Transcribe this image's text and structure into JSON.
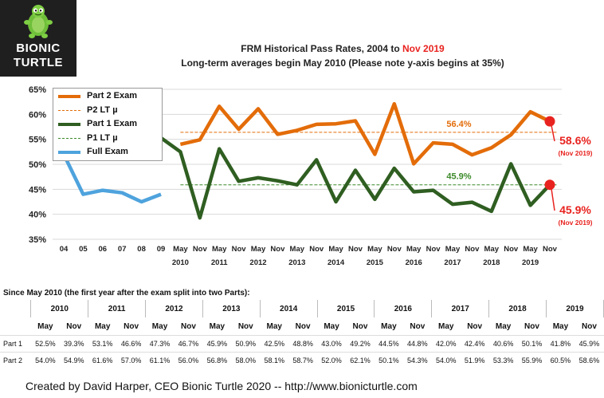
{
  "logo": {
    "line1": "BIONIC",
    "line2": "TURTLE",
    "icon": "turtle-icon"
  },
  "title": {
    "line1_prefix": "FRM Historical Pass Rates, 2004 to ",
    "line1_highlight": "Nov 2019",
    "line2": "Long-term averages begin May 2010 (Please note y-axis begins at 35%)"
  },
  "colors": {
    "part2": "#e36c09",
    "part1": "#2f5e21",
    "full": "#4ea3dd",
    "highlight": "#e8231f",
    "p2avg": "#e36c09",
    "p1avg": "#3d8a2a"
  },
  "chart_data": {
    "type": "line",
    "title": "FRM Historical Pass Rates, 2004 to Nov 2019",
    "subtitle": "Long-term averages begin May 2010 (Please note y-axis begins at 35%)",
    "y_ticks": [
      "35%",
      "40%",
      "45%",
      "50%",
      "55%",
      "60%",
      "65%"
    ],
    "ylim": [
      35,
      65
    ],
    "x_ticks": [
      {
        "label": "04",
        "year": ""
      },
      {
        "label": "05",
        "year": ""
      },
      {
        "label": "06",
        "year": ""
      },
      {
        "label": "07",
        "year": ""
      },
      {
        "label": "08",
        "year": ""
      },
      {
        "label": "09",
        "year": ""
      },
      {
        "label": "May",
        "year": "2010"
      },
      {
        "label": "Nov",
        "year": ""
      },
      {
        "label": "May",
        "year": "2011"
      },
      {
        "label": "Nov",
        "year": ""
      },
      {
        "label": "May",
        "year": "2012"
      },
      {
        "label": "Nov",
        "year": ""
      },
      {
        "label": "May",
        "year": "2013"
      },
      {
        "label": "Nov",
        "year": ""
      },
      {
        "label": "May",
        "year": "2014"
      },
      {
        "label": "Nov",
        "year": ""
      },
      {
        "label": "May",
        "year": "2015"
      },
      {
        "label": "Nov",
        "year": ""
      },
      {
        "label": "May",
        "year": "2016"
      },
      {
        "label": "Nov",
        "year": ""
      },
      {
        "label": "May",
        "year": "2017"
      },
      {
        "label": "Nov",
        "year": ""
      },
      {
        "label": "May",
        "year": "2018"
      },
      {
        "label": "Nov",
        "year": ""
      },
      {
        "label": "May",
        "year": "2019"
      },
      {
        "label": "Nov",
        "year": ""
      }
    ],
    "series": [
      {
        "name": "Full Exam",
        "start_index": 0,
        "values": [
          52.0,
          44.0,
          44.8,
          44.3,
          42.5,
          44.0
        ]
      },
      {
        "name": "Part 1 Exam",
        "start_index": 5,
        "values": [
          55.3,
          52.5,
          39.3,
          53.1,
          46.6,
          47.3,
          46.7,
          45.9,
          50.9,
          42.5,
          48.8,
          43.0,
          49.2,
          44.5,
          44.8,
          42.0,
          42.4,
          40.6,
          50.1,
          41.8,
          45.9
        ]
      },
      {
        "name": "Part 2 Exam",
        "start_index": 6,
        "values": [
          54.0,
          54.9,
          61.6,
          57.0,
          61.1,
          56.0,
          56.8,
          58.0,
          58.1,
          58.7,
          52.0,
          62.1,
          50.1,
          54.3,
          54.0,
          51.9,
          53.3,
          55.9,
          60.5,
          58.6
        ]
      }
    ],
    "averages": [
      {
        "name": "P2 LT µ",
        "value": 56.4,
        "label": "56.4%"
      },
      {
        "name": "P1 LT µ",
        "value": 45.9,
        "label": "45.9%"
      }
    ],
    "legend": [
      "Part 2 Exam",
      "P2 LT µ",
      "Part 1 Exam",
      "P1 LT µ",
      "Full Exam"
    ],
    "callouts": [
      {
        "value": "58.6%",
        "sub": "(Nov 2019)"
      },
      {
        "value": "45.9%",
        "sub": "(Nov 2019)"
      }
    ]
  },
  "table": {
    "note": "Since May 2010 (the first year after the exam split into two Parts):",
    "years": [
      "2010",
      "2011",
      "2012",
      "2013",
      "2014",
      "2015",
      "2016",
      "2017",
      "2018",
      "2019"
    ],
    "halves": [
      "May",
      "Nov"
    ],
    "rows": [
      {
        "label": "Part 1",
        "values": [
          "52.5%",
          "39.3%",
          "53.1%",
          "46.6%",
          "47.3%",
          "46.7%",
          "45.9%",
          "50.9%",
          "42.5%",
          "48.8%",
          "43.0%",
          "49.2%",
          "44.5%",
          "44.8%",
          "42.0%",
          "42.4%",
          "40.6%",
          "50.1%",
          "41.8%",
          "45.9%"
        ]
      },
      {
        "label": "Part 2",
        "values": [
          "54.0%",
          "54.9%",
          "61.6%",
          "57.0%",
          "61.1%",
          "56.0%",
          "56.8%",
          "58.0%",
          "58.1%",
          "58.7%",
          "52.0%",
          "62.1%",
          "50.1%",
          "54.3%",
          "54.0%",
          "51.9%",
          "53.3%",
          "55.9%",
          "60.5%",
          "58.6%"
        ]
      }
    ]
  },
  "footer": "Created by David Harper, CEO Bionic Turtle 2020 -- http://www.bionicturtle.com"
}
